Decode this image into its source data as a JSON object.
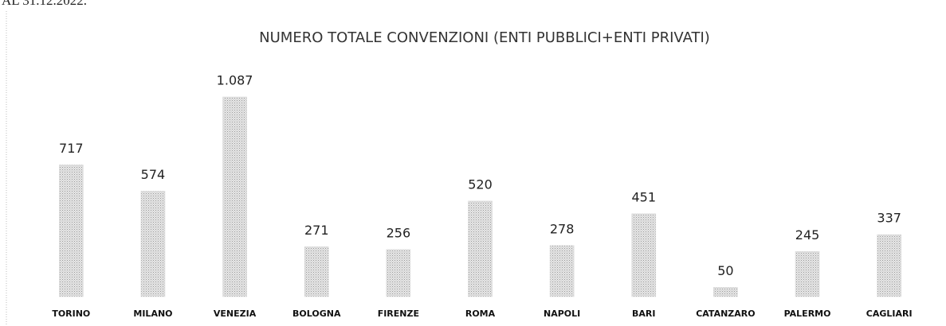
{
  "caption": "AL 31.12.2022.",
  "chart_data": {
    "type": "bar",
    "title": "NUMERO TOTALE CONVENZIONI (ENTI PUBBLICI+ENTI PRIVATI)",
    "categories": [
      "TORINO",
      "MILANO",
      "VENEZIA",
      "BOLOGNA",
      "FIRENZE",
      "ROMA",
      "NAPOLI",
      "BARI",
      "CATANZARO",
      "PALERMO",
      "CAGLIARI"
    ],
    "values": [
      717,
      574,
      1087,
      271,
      256,
      520,
      278,
      451,
      50,
      245,
      337
    ],
    "value_labels": [
      "717",
      "574",
      "1.087",
      "271",
      "256",
      "520",
      "278",
      "451",
      "50",
      "245",
      "337"
    ],
    "color": "#d8d8d8"
  }
}
